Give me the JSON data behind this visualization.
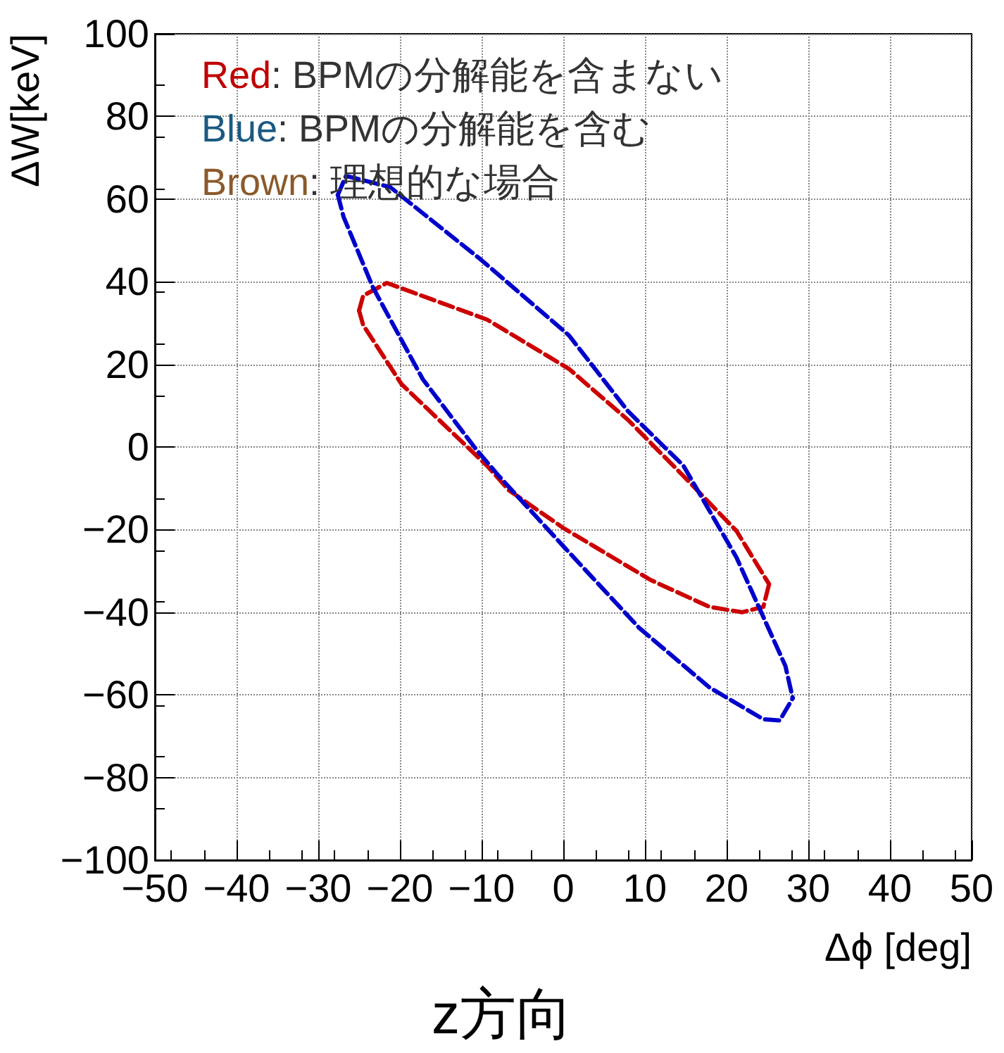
{
  "chart_data": {
    "type": "line",
    "title": "z方向",
    "xlabel": "Δϕ [deg]",
    "ylabel": "ΔW[keV]",
    "annotations": [
      "Red: BPMの分解能を含まない",
      "Blue: BPMの分解能を含む",
      "Brown: 理想的な場合"
    ],
    "series": [
      {
        "color": "#cc0000",
        "x": [
          -25,
          -24.5,
          -21.6,
          -9.3,
          0.7,
          7.9,
          14.7,
          21.2,
          25.2
        ],
        "values": [
          33,
          36.6,
          39.7,
          30.8,
          18.9,
          6.6,
          -7,
          -20.3,
          -33.2
        ]
      },
      {
        "color": "#cc0000",
        "x": [
          -25,
          -24.5,
          -19.8,
          -9.3,
          -6.7,
          0,
          10.7,
          17.9,
          21.9,
          24.5,
          25.2
        ],
        "values": [
          33,
          29.5,
          15.2,
          -4.6,
          -10.4,
          -19.6,
          -32.2,
          -38.7,
          -40,
          -38.7,
          -33.2
        ]
      },
      {
        "color": "#0000cc",
        "x": [
          -27.6,
          -26.6,
          -21.2,
          -10,
          0.7,
          7.9,
          14.7,
          21.2,
          27.2,
          28.1
        ],
        "values": [
          61,
          65.6,
          62.9,
          45.2,
          27,
          8.7,
          -4.5,
          -26.7,
          -53,
          -60.8
        ]
      },
      {
        "color": "#0000cc",
        "x": [
          -27.6,
          -26.9,
          -23.3,
          -17.2,
          -10.7,
          -7.9,
          0,
          9.3,
          17.9,
          24.5,
          26.5,
          28.1
        ],
        "values": [
          61,
          55.7,
          38.6,
          16.4,
          -0.5,
          -7,
          -24,
          -43.8,
          -58.2,
          -65.9,
          -66.2,
          -60.8
        ]
      }
    ],
    "xlim": [
      -50,
      50
    ],
    "xticks": [
      {
        "value": -50,
        "label": "−50"
      },
      {
        "value": -40,
        "label": "−40"
      },
      {
        "value": -30,
        "label": "−30"
      },
      {
        "value": -20,
        "label": "−20"
      },
      {
        "value": -10,
        "label": "−10"
      },
      0,
      10,
      20,
      30,
      40,
      50
    ],
    "ylim": [
      -100,
      100
    ],
    "yticks": [
      {
        "value": -100,
        "label": "−100"
      },
      {
        "value": -80,
        "label": "−80"
      },
      {
        "value": -60,
        "label": "−60"
      },
      {
        "value": -40,
        "label": "−40"
      },
      {
        "value": -20,
        "label": "−20"
      },
      0,
      20,
      40,
      60,
      80,
      100
    ],
    "grid": true,
    "marker": "none",
    "line_style": "dashed"
  }
}
